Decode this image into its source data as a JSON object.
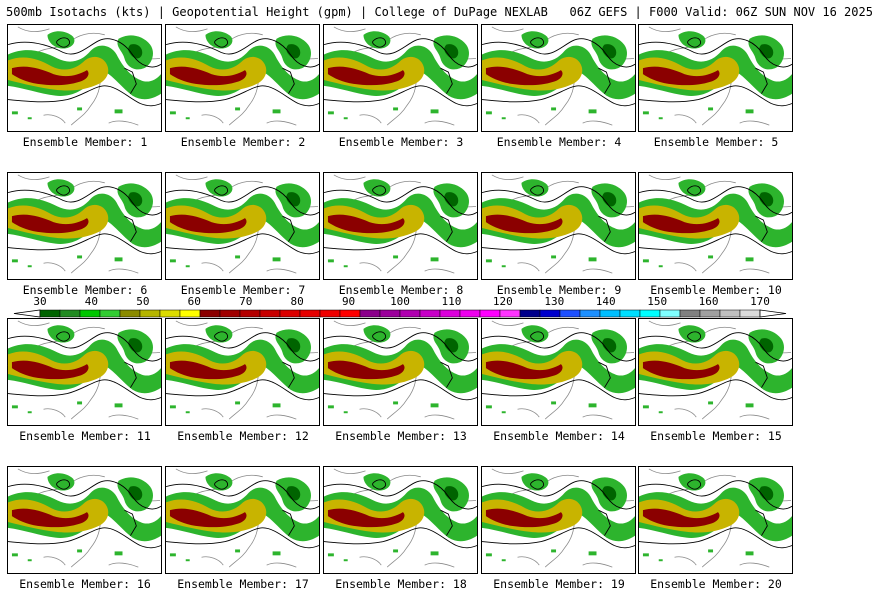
{
  "title": "500mb Isotachs (kts) | Geopotential Height (gpm) | College of DuPage NEXLAB   06Z GEFS | F000 Valid: 06Z SUN NOV 16 2025",
  "panels": [
    {
      "label": "Ensemble Member: 1"
    },
    {
      "label": "Ensemble Member: 2"
    },
    {
      "label": "Ensemble Member: 3"
    },
    {
      "label": "Ensemble Member: 4"
    },
    {
      "label": "Ensemble Member: 5"
    },
    {
      "label": "Ensemble Member: 6"
    },
    {
      "label": "Ensemble Member: 7"
    },
    {
      "label": "Ensemble Member: 8"
    },
    {
      "label": "Ensemble Member: 9"
    },
    {
      "label": "Ensemble Member: 10"
    },
    {
      "label": "Ensemble Member: 11"
    },
    {
      "label": "Ensemble Member: 12"
    },
    {
      "label": "Ensemble Member: 13"
    },
    {
      "label": "Ensemble Member: 14"
    },
    {
      "label": "Ensemble Member: 15"
    },
    {
      "label": "Ensemble Member: 16"
    },
    {
      "label": "Ensemble Member: 17"
    },
    {
      "label": "Ensemble Member: 18"
    },
    {
      "label": "Ensemble Member: 19"
    },
    {
      "label": "Ensemble Member: 20"
    }
  ],
  "colorbar": {
    "ticks": [
      "30",
      "40",
      "50",
      "60",
      "70",
      "80",
      "90",
      "100",
      "110",
      "120",
      "130",
      "140",
      "150",
      "160",
      "170"
    ],
    "colors": [
      "#006400",
      "#228b22",
      "#00c800",
      "#32cd32",
      "#8b8b00",
      "#b5b500",
      "#dcdc00",
      "#ffff00",
      "#8b0000",
      "#a00000",
      "#b40000",
      "#c80000",
      "#dc0000",
      "#e60000",
      "#f00000",
      "#ff0000",
      "#8b008b",
      "#9b009b",
      "#b000b0",
      "#c800c8",
      "#dc00dc",
      "#ee00ee",
      "#ff00ff",
      "#ff33ff",
      "#00008b",
      "#0000cd",
      "#1e50ff",
      "#1e90ff",
      "#00bfff",
      "#00dfff",
      "#00ffff",
      "#7fffff",
      "#808080",
      "#a0a0a0",
      "#c0c0c0",
      "#dcdcdc"
    ]
  },
  "colors": {
    "jet_core": "#8b0000",
    "jet_mid": "#c8b400",
    "jet_edge": "#2db42d",
    "jet_dark": "#006400"
  }
}
